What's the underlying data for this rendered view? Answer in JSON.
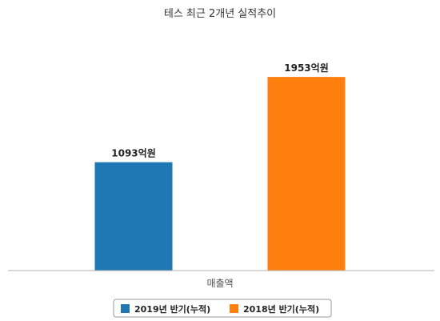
{
  "chart_data": {
    "type": "bar",
    "title": "테스 최근 2개년 실적추이",
    "categories": [
      "매출액"
    ],
    "series": [
      {
        "name": "2019년 반기(누적)",
        "values": [
          1093
        ],
        "labels": [
          "1093억원"
        ],
        "color": "#1f77b4"
      },
      {
        "name": "2018년 반기(누적)",
        "values": [
          1953
        ],
        "labels": [
          "1953억원"
        ],
        "color": "#ff7f0e"
      }
    ],
    "ylim": [
      0,
      2180
    ],
    "grid": false,
    "legend_position": "bottom"
  }
}
